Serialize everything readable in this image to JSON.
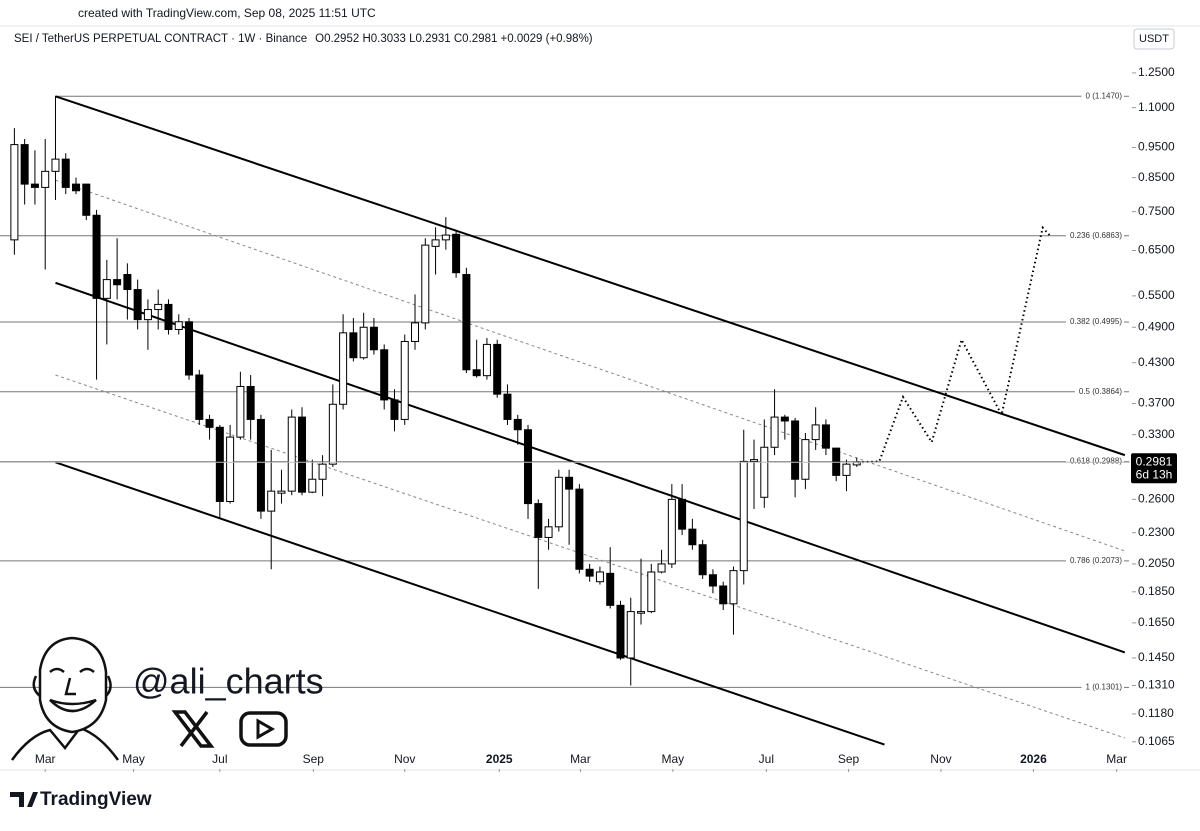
{
  "chart_data": {
    "type": "candlestick",
    "watermark_header": "created with TradingView.com, Sep 08, 2025 11:51 UTC",
    "title": "SEI / TetherUS PERPETUAL CONTRACT · 1W · Binance",
    "ohlc_text": "O0.2952 H0.3033 L0.2931 C0.2981 +0.0029 (+0.98%)",
    "currency": "USDT",
    "countdown": "6d 13h",
    "author": "@ali_charts",
    "brand": "TradingView",
    "up_color": "#ffffff",
    "down_color": "#000000",
    "log_scale": true,
    "open": [
      0.676,
      0.96,
      0.83,
      0.82,
      0.87,
      0.91,
      0.83,
      0.83,
      0.74,
      0.545,
      0.584,
      0.595,
      0.563,
      0.504,
      0.523,
      0.533,
      0.486,
      0.5,
      0.411,
      0.349,
      0.339,
      0.258,
      0.327,
      0.394,
      0.349,
      0.249,
      0.266,
      0.268,
      0.352,
      0.267,
      0.28,
      0.296,
      0.369,
      0.48,
      0.438,
      0.49,
      0.451,
      0.375,
      0.349,
      0.465,
      0.498,
      0.66,
      0.676,
      0.69,
      0.595,
      0.419,
      0.41,
      0.46,
      0.383,
      0.349,
      0.336,
      0.256,
      0.226,
      0.235,
      0.282,
      0.27,
      0.201,
      0.192,
      0.198,
      0.176,
      0.145,
      0.171,
      0.172,
      0.199,
      0.205,
      0.26,
      0.233,
      0.22,
      0.197,
      0.189,
      0.177,
      0.2,
      0.299,
      0.262,
      0.315,
      0.352,
      0.347,
      0.28,
      0.324,
      0.342,
      0.314,
      0.284,
      0.2952
    ],
    "high": [
      1.02,
      0.98,
      0.94,
      0.98,
      1.147,
      0.93,
      0.85,
      0.83,
      0.755,
      0.628,
      0.68,
      0.62,
      0.584,
      0.543,
      0.563,
      0.543,
      0.514,
      0.507,
      0.419,
      0.355,
      0.342,
      0.342,
      0.416,
      0.411,
      0.355,
      0.312,
      0.29,
      0.362,
      0.365,
      0.301,
      0.306,
      0.397,
      0.514,
      0.507,
      0.517,
      0.507,
      0.46,
      0.39,
      0.477,
      0.553,
      0.68,
      0.708,
      0.735,
      0.702,
      0.61,
      0.468,
      0.471,
      0.468,
      0.397,
      0.355,
      0.342,
      0.26,
      0.242,
      0.29,
      0.29,
      0.275,
      0.205,
      0.203,
      0.218,
      0.179,
      0.181,
      0.209,
      0.205,
      0.216,
      0.275,
      0.275,
      0.242,
      0.224,
      0.201,
      0.192,
      0.203,
      0.336,
      0.324,
      0.349,
      0.39,
      0.355,
      0.351,
      0.332,
      0.365,
      0.349,
      0.314,
      0.301,
      0.3033
    ],
    "low": [
      0.64,
      0.77,
      0.77,
      0.606,
      0.783,
      0.8,
      0.8,
      0.727,
      0.404,
      0.46,
      0.543,
      0.504,
      0.486,
      0.451,
      0.486,
      0.477,
      0.477,
      0.404,
      0.342,
      0.324,
      0.242,
      0.256,
      0.324,
      0.324,
      0.242,
      0.201,
      0.256,
      0.264,
      0.264,
      0.266,
      0.263,
      0.293,
      0.362,
      0.432,
      0.435,
      0.443,
      0.362,
      0.334,
      0.342,
      0.451,
      0.486,
      0.595,
      0.652,
      0.588,
      0.414,
      0.407,
      0.404,
      0.378,
      0.342,
      0.318,
      0.242,
      0.187,
      0.216,
      0.231,
      0.22,
      0.198,
      0.192,
      0.19,
      0.174,
      0.144,
      0.131,
      0.164,
      0.171,
      0.198,
      0.202,
      0.228,
      0.216,
      0.194,
      0.184,
      0.173,
      0.158,
      0.19,
      0.251,
      0.252,
      0.306,
      0.324,
      0.262,
      0.27,
      0.312,
      0.306,
      0.278,
      0.268,
      0.2931
    ],
    "close": [
      0.96,
      0.83,
      0.82,
      0.87,
      0.91,
      0.82,
      0.81,
      0.74,
      0.545,
      0.584,
      0.573,
      0.563,
      0.504,
      0.523,
      0.533,
      0.486,
      0.5,
      0.411,
      0.349,
      0.339,
      0.258,
      0.327,
      0.394,
      0.349,
      0.249,
      0.268,
      0.268,
      0.352,
      0.267,
      0.28,
      0.296,
      0.369,
      0.48,
      0.438,
      0.49,
      0.451,
      0.375,
      0.349,
      0.465,
      0.498,
      0.663,
      0.676,
      0.688,
      0.599,
      0.419,
      0.41,
      0.46,
      0.383,
      0.349,
      0.336,
      0.256,
      0.226,
      0.235,
      0.282,
      0.27,
      0.201,
      0.196,
      0.199,
      0.176,
      0.145,
      0.172,
      0.172,
      0.199,
      0.205,
      0.26,
      0.233,
      0.22,
      0.197,
      0.189,
      0.177,
      0.2,
      0.299,
      0.301,
      0.315,
      0.352,
      0.347,
      0.28,
      0.324,
      0.342,
      0.314,
      0.284,
      0.296,
      0.2981
    ],
    "xlim": [
      -1.4,
      108.6
    ],
    "xticks": [
      {
        "value": 3.0,
        "label": "Mar"
      },
      {
        "value": 11.6,
        "label": "May"
      },
      {
        "value": 20.0,
        "label": "Jul"
      },
      {
        "value": 29.1,
        "label": "Sep"
      },
      {
        "value": 38.0,
        "label": "Nov"
      },
      {
        "value": 47.2,
        "label": "2025"
      },
      {
        "value": 55.1,
        "label": "Mar"
      },
      {
        "value": 64.1,
        "label": "May"
      },
      {
        "value": 73.2,
        "label": "Jul"
      },
      {
        "value": 81.2,
        "label": "Sep"
      },
      {
        "value": 90.2,
        "label": "Nov"
      },
      {
        "value": 99.2,
        "label": "2026"
      },
      {
        "value": 107.3,
        "label": "Mar"
      }
    ],
    "ylim": [
      0.0967,
      1.36
    ],
    "yticks": [
      {
        "value": 1.25,
        "label": "1.2500"
      },
      {
        "value": 1.1,
        "label": "1.1000"
      },
      {
        "value": 0.95,
        "label": "0.9500"
      },
      {
        "value": 0.85,
        "label": "0.8500"
      },
      {
        "value": 0.75,
        "label": "0.7500"
      },
      {
        "value": 0.65,
        "label": "0.6500"
      },
      {
        "value": 0.55,
        "label": "0.5500"
      },
      {
        "value": 0.49,
        "label": "0.4900"
      },
      {
        "value": 0.43,
        "label": "0.4300"
      },
      {
        "value": 0.37,
        "label": "0.3700"
      },
      {
        "value": 0.33,
        "label": "0.3300"
      },
      {
        "value": 0.26,
        "label": "0.2600"
      },
      {
        "value": 0.23,
        "label": "0.2300"
      },
      {
        "value": 0.205,
        "label": "0.2050"
      },
      {
        "value": 0.185,
        "label": "0.1850"
      },
      {
        "value": 0.165,
        "label": "0.1650"
      },
      {
        "value": 0.145,
        "label": "0.1450"
      },
      {
        "value": 0.131,
        "label": "0.1310"
      },
      {
        "value": 0.118,
        "label": "0.1180"
      },
      {
        "value": 0.1065,
        "label": "0.1065"
      }
    ],
    "fib_levels": [
      {
        "value": 1.147,
        "label": "0 (1.1470)"
      },
      {
        "value": 0.6863,
        "label": "0.236 (0.6863)"
      },
      {
        "value": 0.4995,
        "label": "0.382 (0.4995)"
      },
      {
        "value": 0.3864,
        "label": "0.5 (0.3864)"
      },
      {
        "value": 0.2988,
        "label": "0.618 (0.2988)"
      },
      {
        "value": 0.2073,
        "label": "0.786 (0.2073)"
      },
      {
        "value": 0.1301,
        "label": "1 (0.1301)"
      }
    ],
    "trendlines": [
      {
        "style": "solid",
        "x": [
          4,
          108.1
        ],
        "y": [
          1.147,
          0.306
        ]
      },
      {
        "style": "solid",
        "x": [
          4,
          108.1
        ],
        "y": [
          0.577,
          0.148
        ]
      },
      {
        "style": "solid",
        "x": [
          4,
          84.7
        ],
        "y": [
          0.298,
          0.1054
        ]
      },
      {
        "style": "dashed",
        "x": [
          4,
          108.1
        ],
        "y": [
          0.842,
          0.215
        ]
      },
      {
        "style": "dashed",
        "x": [
          4,
          108.1
        ],
        "y": [
          0.411,
          0.108
        ]
      }
    ],
    "projection": {
      "x": [
        82.1,
        84.2,
        86.5,
        89.3,
        92.2,
        96.1,
        100.1,
        100.8
      ],
      "y": [
        0.298,
        0.299,
        0.379,
        0.321,
        0.468,
        0.355,
        0.707,
        0.687
      ]
    }
  }
}
